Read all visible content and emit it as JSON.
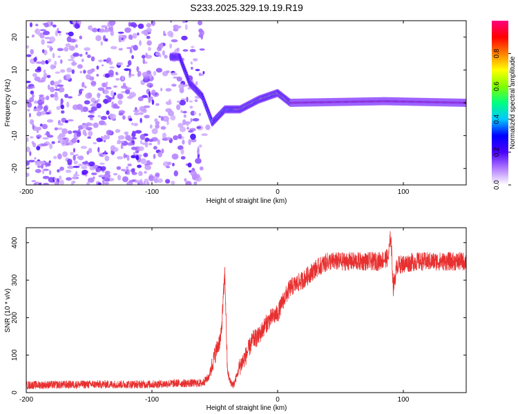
{
  "figure": {
    "title": "S233.2025.329.19.19.R19"
  },
  "chart_data": [
    {
      "type": "heatmap",
      "name": "spectrogram",
      "xlabel": "Height of straight line (km)",
      "ylabel": "Frequency (Hz)",
      "xlim": [
        -200,
        150
      ],
      "ylim": [
        -25,
        25
      ],
      "xticks": [
        -200,
        -100,
        0,
        100
      ],
      "yticks": [
        -20,
        -10,
        0,
        10,
        20
      ],
      "description_points": {
        "ridge_frequency_hz": [
          {
            "x": -78,
            "y": 14
          },
          {
            "x": -70,
            "y": 6
          },
          {
            "x": -60,
            "y": 2
          },
          {
            "x": -52,
            "y": -6
          },
          {
            "x": -42,
            "y": -2
          },
          {
            "x": -30,
            "y": -2
          },
          {
            "x": -15,
            "y": 1
          },
          {
            "x": 0,
            "y": 3
          },
          {
            "x": 10,
            "y": 0
          },
          {
            "x": 85,
            "y": 0.5
          },
          {
            "x": 150,
            "y": 0
          }
        ]
      },
      "colorbar": {
        "label": "Normalized spectral amplitude",
        "range": [
          0,
          1
        ],
        "ticks": [
          "0.0",
          "0.2",
          "0.4",
          "0.6",
          "0.8"
        ],
        "colors": [
          "#ffffff",
          "#b27cff",
          "#4a00ff",
          "#0000ff",
          "#00c8ff",
          "#00ff80",
          "#80ff00",
          "#ffff00",
          "#ff8000",
          "#ff0000",
          "#ff0080"
        ]
      }
    },
    {
      "type": "line",
      "name": "snr",
      "xlabel": "Height of straight line (km)",
      "ylabel": "SNR (10 * v/v)",
      "xlim": [
        -200,
        150
      ],
      "ylim": [
        0,
        440
      ],
      "xticks": [
        -200,
        -100,
        0,
        100
      ],
      "yticks": [
        0,
        100,
        200,
        300,
        400
      ],
      "color": "#e83030",
      "series": [
        {
          "name": "SNR",
          "x": [
            -200,
            -150,
            -100,
            -80,
            -70,
            -60,
            -55,
            -50,
            -45,
            -42,
            -40,
            -38,
            -35,
            -30,
            -25,
            -20,
            -15,
            -10,
            -5,
            0,
            5,
            10,
            20,
            30,
            40,
            60,
            80,
            88,
            90,
            92,
            95,
            110,
            130,
            150
          ],
          "y": [
            20,
            22,
            22,
            25,
            25,
            25,
            40,
            100,
            150,
            320,
            60,
            30,
            20,
            70,
            100,
            140,
            150,
            180,
            200,
            210,
            250,
            280,
            300,
            330,
            350,
            350,
            350,
            360,
            420,
            280,
            340,
            350,
            350,
            350
          ]
        }
      ]
    }
  ]
}
